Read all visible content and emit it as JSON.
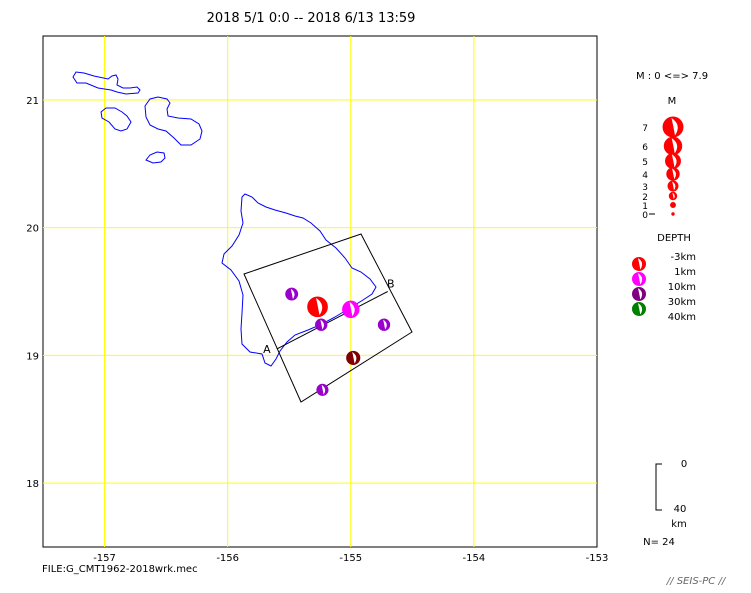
{
  "title": "2018 5/1 0:0 -- 2018 6/13 13:59",
  "map": {
    "lon_range": [
      -157.5,
      -153.0
    ],
    "lat_range": [
      17.5,
      21.5
    ],
    "lon_ticks": [
      -157,
      -156,
      -155,
      -154,
      -153
    ],
    "lat_ticks": [
      18,
      19,
      20,
      21
    ],
    "lon_labels": [
      "-157",
      "-156",
      "-155",
      "-154",
      "-153"
    ],
    "lat_labels": [
      "18",
      "19",
      "20",
      "21"
    ],
    "grid_color": "#ffff00",
    "coast_color": "#0000ff",
    "cross_section": {
      "label_a": "A",
      "label_b": "B",
      "point_a": [
        -155.6,
        19.05
      ],
      "point_b": [
        -154.7,
        19.5
      ]
    }
  },
  "events": [
    {
      "lon": -155.27,
      "lat": 19.38,
      "mag": 6.9,
      "depth": 5,
      "color": "#ff0000"
    },
    {
      "lon": -155.0,
      "lat": 19.36,
      "mag": 5.6,
      "depth": 8,
      "color": "#ff00ff"
    },
    {
      "lon": -155.48,
      "lat": 19.48,
      "mag": 3.8,
      "depth": 12,
      "color": "#9900cc"
    },
    {
      "lon": -155.24,
      "lat": 19.24,
      "mag": 3.6,
      "depth": 15,
      "color": "#9900cc"
    },
    {
      "lon": -154.73,
      "lat": 19.24,
      "mag": 3.6,
      "depth": 20,
      "color": "#9900cc"
    },
    {
      "lon": -154.98,
      "lat": 18.98,
      "mag": 4.3,
      "depth": 25,
      "color": "#800000"
    },
    {
      "lon": -155.23,
      "lat": 18.73,
      "mag": 3.5,
      "depth": 10,
      "color": "#9900cc"
    }
  ],
  "legend": {
    "mag_range_text": "M : 0 <=> 7.9",
    "mag_heading": "M",
    "mag_labels": [
      "7",
      "6",
      "5",
      "4",
      "3",
      "2",
      "1",
      "0"
    ],
    "depth_heading": "DEPTH",
    "depth_labels": [
      "-3km",
      "1km",
      "10km",
      "30km",
      "40km"
    ],
    "depth_colors": [
      "#ff0000",
      "#ff0000",
      "#ff00ff",
      "#800080",
      "#008000"
    ],
    "scale_top": "0",
    "scale_bottom": "40",
    "scale_unit": "km",
    "count": "N= 24"
  },
  "footer": {
    "file": "FILE:G_CMT1962-2018wrk.mec",
    "brand": "// SEIS-PC //"
  }
}
